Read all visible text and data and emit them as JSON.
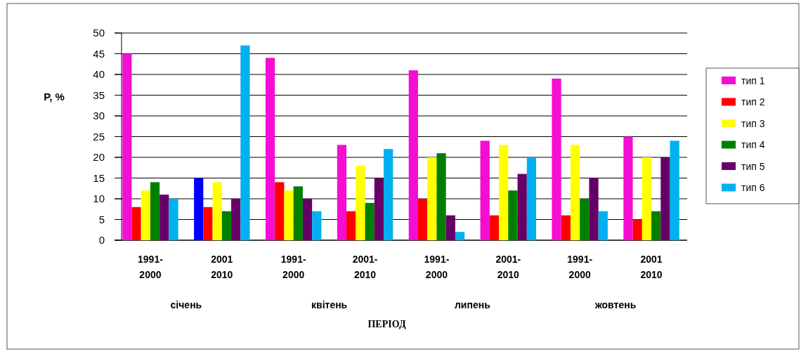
{
  "chart_data": {
    "type": "bar",
    "xlabel": "ПЕРІОД",
    "ylabel": "P, %",
    "categories": [
      "1991-\n2000",
      "2001\n2010",
      "1991-\n2000",
      "2001-\n2010",
      "1991-\n2000",
      "2001-\n2010",
      "1991-\n2000",
      "2001\n2010"
    ],
    "annotations": [
      "січень",
      "квітень",
      "липень",
      "жовтень"
    ],
    "series": [
      {
        "name": "тип 1",
        "color": "#f50ed2",
        "colors": [
          "#f50ed2",
          "#0000ff",
          "#f50ed2",
          "#f50ed2",
          "#f50ed2",
          "#f50ed2",
          "#f50ed2",
          "#f50ed2"
        ],
        "values": [
          45,
          15,
          44,
          23,
          41,
          24,
          39,
          25
        ]
      },
      {
        "name": "тип 2",
        "color": "#ff0000",
        "values": [
          8,
          8,
          14,
          7,
          10,
          6,
          6,
          5
        ]
      },
      {
        "name": "тип 3",
        "color": "#ffff00",
        "values": [
          12,
          14,
          12,
          18,
          20,
          23,
          23,
          20
        ]
      },
      {
        "name": "тип 4",
        "color": "#008000",
        "values": [
          14,
          7,
          13,
          9,
          21,
          12,
          10,
          7
        ]
      },
      {
        "name": "тип 5",
        "color": "#660066",
        "values": [
          11,
          10,
          10,
          15,
          6,
          16,
          15,
          20
        ]
      },
      {
        "name": "тип 6",
        "color": "#00b0f0",
        "values": [
          10,
          47,
          7,
          22,
          2,
          20,
          7,
          24
        ]
      }
    ],
    "ylim": [
      0,
      50
    ],
    "yticks": [
      0,
      5,
      10,
      15,
      20,
      25,
      30,
      35,
      40,
      45,
      50
    ],
    "grid": "y",
    "legend": "right"
  }
}
